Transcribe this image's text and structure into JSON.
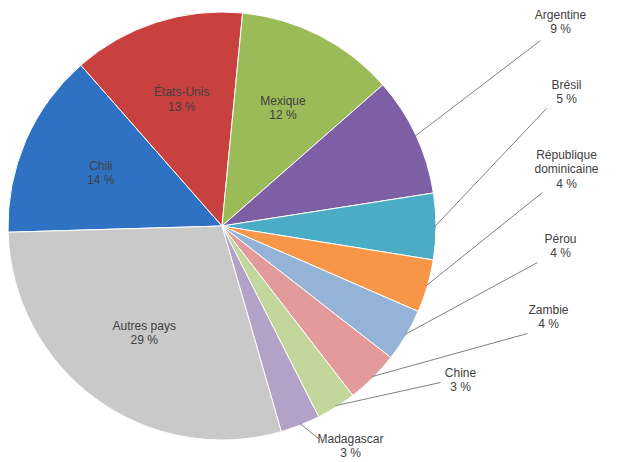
{
  "chart_data": {
    "type": "pie",
    "categories": [
      "Chili",
      "États-Unis",
      "Mexique",
      "Argentine",
      "Brésil",
      "République dominicaine",
      "Pérou",
      "Zambie",
      "Chine",
      "Madagascar",
      "Autres pays"
    ],
    "values": [
      14,
      13,
      12,
      9,
      5,
      4,
      4,
      4,
      3,
      3,
      29
    ],
    "value_labels": [
      "14 %",
      "13 %",
      "12 %",
      "9 %",
      "5 %",
      "4 %",
      "4 %",
      "4 %",
      "3 %",
      "3 %",
      "29 %"
    ],
    "colors": [
      "#2f72c4",
      "#c8413f",
      "#9bbb59",
      "#7d5fa6",
      "#4bacc6",
      "#f79646",
      "#95b3d7",
      "#e39a9a",
      "#c3d69b",
      "#b3a2c7",
      "#c9c9c9"
    ],
    "data_labels": true
  }
}
